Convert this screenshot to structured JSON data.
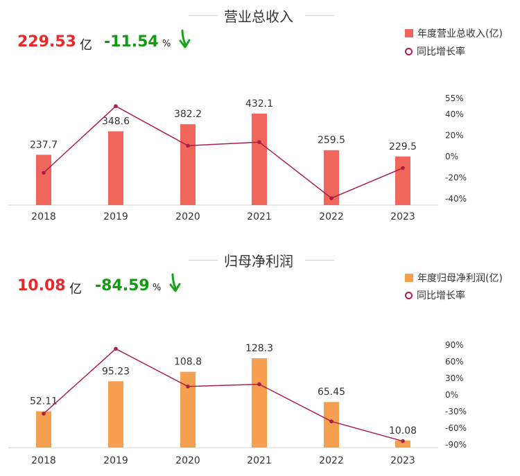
{
  "colors": {
    "revenue_bar": "#f0665a",
    "profit_bar": "#f5a050",
    "line": "#a81f4a",
    "value_red": "#e8282b",
    "value_green": "#119911",
    "arrow_green": "#17a317"
  },
  "icons": {
    "trend_arrow": "down-arrow-icon"
  },
  "panels": [
    {
      "title": "营业总收入",
      "kpi_value": "229.53",
      "kpi_unit": "亿",
      "kpi_change": "-11.54",
      "kpi_change_unit": "%",
      "legend_bar": "年度营业总收入(亿)",
      "legend_line": "同比增长率"
    },
    {
      "title": "归母净利润",
      "kpi_value": "10.08",
      "kpi_unit": "亿",
      "kpi_change": "-84.59",
      "kpi_change_unit": "%",
      "legend_bar": "年度归母净利润(亿)",
      "legend_line": "同比增长率"
    }
  ],
  "chart_data": [
    {
      "type": "bar",
      "categories": [
        "2018",
        "2019",
        "2020",
        "2021",
        "2022",
        "2023"
      ],
      "series": [
        {
          "name": "年度营业总收入(亿)",
          "type": "bar",
          "axis": "left",
          "values": [
            237.7,
            348.6,
            382.2,
            432.1,
            259.5,
            229.5
          ],
          "labels": [
            "237.7",
            "348.6",
            "382.2",
            "432.1",
            "259.5",
            "229.5"
          ]
        },
        {
          "name": "同比增长率",
          "type": "line",
          "axis": "right",
          "values": [
            -16,
            47,
            9.6,
            13,
            -40,
            -11.5
          ]
        }
      ],
      "right_axis": {
        "ticks": [
          55,
          40,
          20,
          0,
          -20,
          -40
        ],
        "tick_labels": [
          "55%",
          "40%",
          "20%",
          "0%",
          "-20%",
          "-40%"
        ]
      },
      "legend": "top-right"
    },
    {
      "type": "bar",
      "categories": [
        "2018",
        "2019",
        "2020",
        "2021",
        "2022",
        "2023"
      ],
      "series": [
        {
          "name": "年度归母净利润(亿)",
          "type": "bar",
          "axis": "left",
          "values": [
            52.11,
            95.23,
            108.8,
            128.3,
            65.45,
            10.08
          ],
          "labels": [
            "52.11",
            "95.23",
            "108.8",
            "128.3",
            "65.45",
            "10.08"
          ]
        },
        {
          "name": "同比增长率",
          "type": "line",
          "axis": "right",
          "values": [
            -35,
            82,
            14,
            18,
            -49,
            -84.6
          ]
        }
      ],
      "right_axis": {
        "ticks": [
          90,
          60,
          30,
          0,
          -30,
          -60,
          -90
        ],
        "tick_labels": [
          "90%",
          "60%",
          "30%",
          "0%",
          "-30%",
          "-60%",
          "-90%"
        ]
      },
      "legend": "top-right"
    }
  ]
}
